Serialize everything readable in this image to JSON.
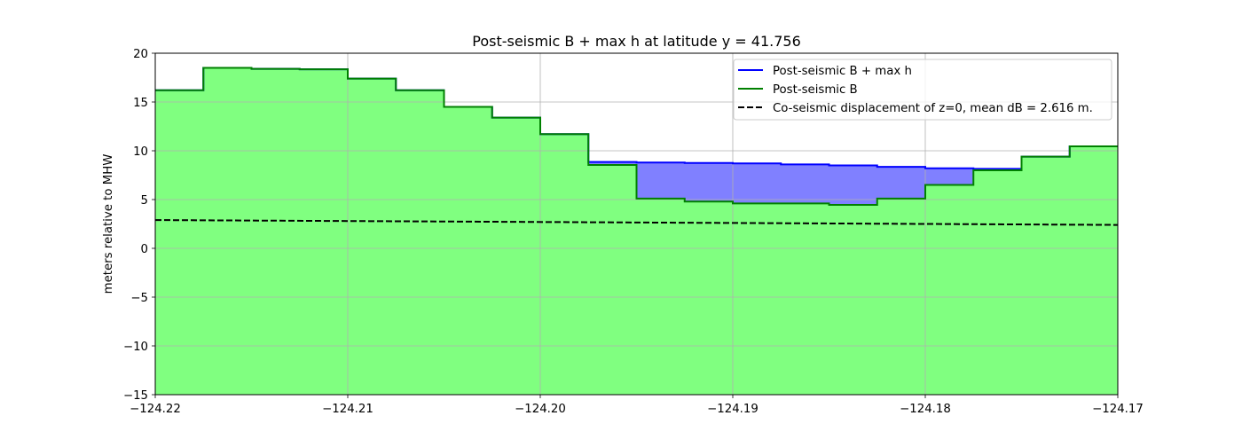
{
  "chart_data": {
    "type": "area",
    "title": "Post-seismic B + max h at latitude y = 41.756",
    "xlabel": "",
    "ylabel": "meters relative to MHW",
    "xlim": [
      -124.22,
      -124.17
    ],
    "ylim": [
      -15,
      20
    ],
    "xticks": [
      -124.22,
      -124.21,
      -124.2,
      -124.19,
      -124.18,
      -124.17
    ],
    "xtick_labels": [
      "−124.22",
      "−124.21",
      "−124.20",
      "−124.19",
      "−124.18",
      "−124.17"
    ],
    "yticks": [
      -15,
      -10,
      -5,
      0,
      5,
      10,
      15,
      20
    ],
    "ytick_labels": [
      "−15",
      "−10",
      "−5",
      "0",
      "5",
      "10",
      "15",
      "20"
    ],
    "grid": true,
    "legend_position": "top-right",
    "step_edges": [
      -124.22,
      -124.2175,
      -124.215,
      -124.2125,
      -124.21,
      -124.2075,
      -124.205,
      -124.2025,
      -124.2,
      -124.1975,
      -124.195,
      -124.1925,
      -124.19,
      -124.1875,
      -124.185,
      -124.1825,
      -124.18,
      -124.1775,
      -124.175,
      -124.1725,
      -124.17
    ],
    "series": [
      {
        "name": "Post-seismic B + max h",
        "color": "#0000ff",
        "fill": "#8080ff",
        "values": [
          16.2,
          18.5,
          18.4,
          18.35,
          17.4,
          16.2,
          14.5,
          13.4,
          11.7,
          8.85,
          8.8,
          8.75,
          8.7,
          8.6,
          8.5,
          8.35,
          8.2,
          8.15,
          9.4,
          10.45
        ]
      },
      {
        "name": "Post-seismic B",
        "color": "#008000",
        "fill": "#80ff80",
        "values": [
          16.2,
          18.5,
          18.4,
          18.35,
          17.4,
          16.2,
          14.5,
          13.4,
          11.7,
          8.55,
          5.1,
          4.8,
          4.6,
          4.6,
          4.45,
          5.1,
          6.5,
          8.0,
          9.4,
          10.45
        ]
      },
      {
        "name": "Co-seismic displacement of z=0, mean dB = 2.616 m.",
        "color": "#000000",
        "style": "dashed",
        "x": [
          -124.22,
          -124.17
        ],
        "values": [
          2.9,
          2.4
        ]
      }
    ]
  }
}
